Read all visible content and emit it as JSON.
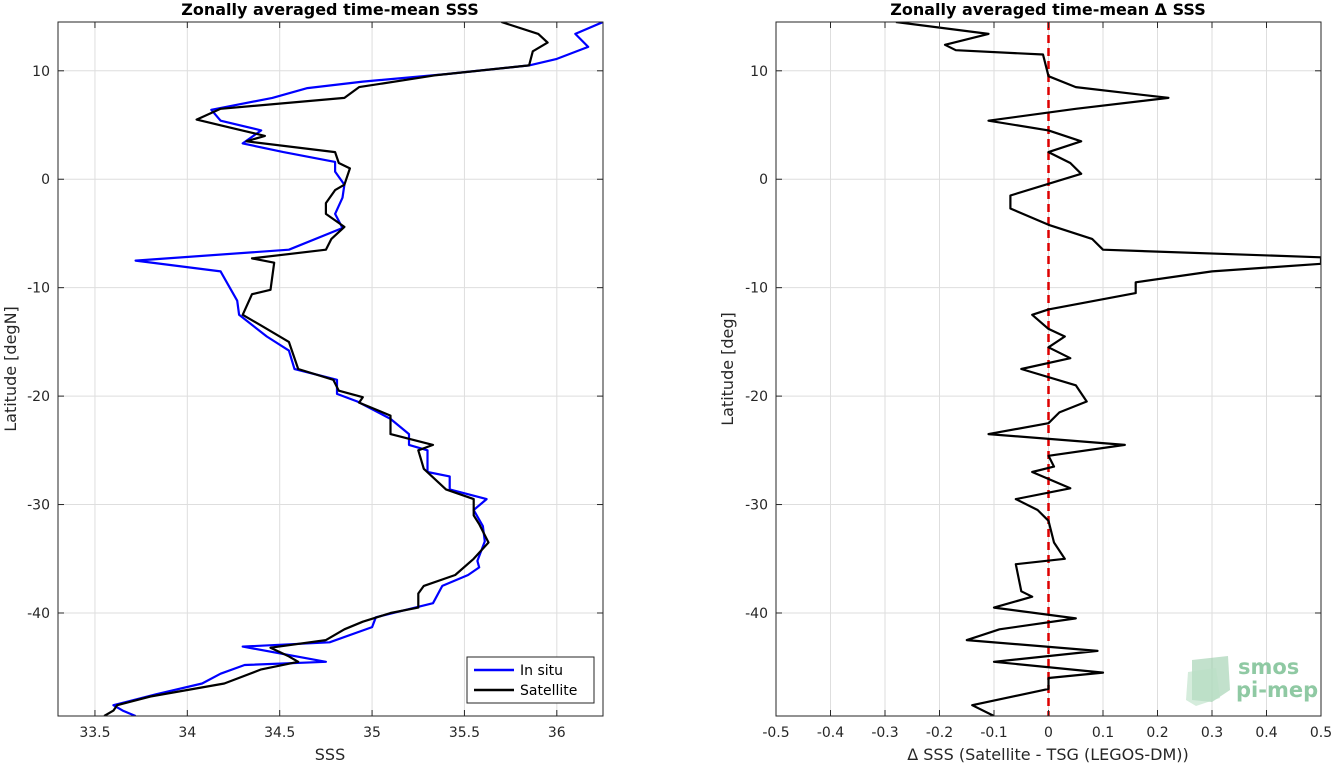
{
  "chart_data": [
    {
      "type": "line",
      "title": "Zonally averaged time-mean SSS",
      "xlabel": "SSS",
      "ylabel": "Latitude [degN]",
      "xlim": [
        33.3,
        36.25
      ],
      "ylim": [
        -49.5,
        14.5
      ],
      "xticks": [
        33.5,
        34,
        34.5,
        35,
        35.5,
        36
      ],
      "xtick_labels": [
        "33.5",
        "34",
        "34.5",
        "35",
        "35.5",
        "36"
      ],
      "yticks": [
        -40,
        -30,
        -20,
        -10,
        0,
        10
      ],
      "ytick_labels": [
        "-40",
        "-30",
        "-20",
        "-10",
        "0",
        "10"
      ],
      "grid": true,
      "legend_position": "bottom-right",
      "colors": {
        "In situ": "#0000ff",
        "Satellite": "#000000"
      },
      "series": [
        {
          "name": "In situ",
          "points": [
            [
              36.25,
              14.5
            ],
            [
              36.1,
              13.4
            ],
            [
              36.17,
              12.2
            ],
            [
              36.0,
              11.1
            ],
            [
              35.85,
              10.5
            ],
            [
              35.4,
              9.7
            ],
            [
              34.95,
              9.0
            ],
            [
              34.65,
              8.4
            ],
            [
              34.46,
              7.5
            ],
            [
              34.13,
              6.4
            ],
            [
              34.18,
              5.4
            ],
            [
              34.4,
              4.5
            ],
            [
              34.3,
              3.3
            ],
            [
              34.52,
              2.5
            ],
            [
              34.8,
              1.6
            ],
            [
              34.8,
              0.7
            ],
            [
              34.85,
              -0.5
            ],
            [
              34.84,
              -1.7
            ],
            [
              34.8,
              -3.2
            ],
            [
              34.84,
              -4.5
            ],
            [
              34.55,
              -6.5
            ],
            [
              33.72,
              -7.5
            ],
            [
              34.18,
              -8.5
            ],
            [
              34.23,
              -10.0
            ],
            [
              34.27,
              -11.2
            ],
            [
              34.28,
              -12.5
            ],
            [
              34.43,
              -14.5
            ],
            [
              34.55,
              -15.8
            ],
            [
              34.58,
              -17.5
            ],
            [
              34.81,
              -18.5
            ],
            [
              34.81,
              -19.8
            ],
            [
              34.92,
              -20.5
            ],
            [
              35.1,
              -22.1
            ],
            [
              35.2,
              -23.5
            ],
            [
              35.2,
              -24.5
            ],
            [
              35.3,
              -25.0
            ],
            [
              35.3,
              -27.0
            ],
            [
              35.42,
              -27.4
            ],
            [
              35.42,
              -28.6
            ],
            [
              35.62,
              -29.5
            ],
            [
              35.55,
              -30.5
            ],
            [
              35.6,
              -32.0
            ],
            [
              35.61,
              -33.4
            ],
            [
              35.57,
              -35.2
            ],
            [
              35.58,
              -35.8
            ],
            [
              35.52,
              -36.5
            ],
            [
              35.38,
              -37.5
            ],
            [
              35.33,
              -39.1
            ],
            [
              35.02,
              -40.4
            ],
            [
              35.0,
              -41.3
            ],
            [
              34.77,
              -42.7
            ],
            [
              34.3,
              -43.1
            ],
            [
              34.75,
              -44.5
            ],
            [
              34.31,
              -44.8
            ],
            [
              34.18,
              -45.6
            ],
            [
              34.08,
              -46.5
            ],
            [
              33.83,
              -47.5
            ],
            [
              33.6,
              -48.5
            ],
            [
              33.65,
              -49.0
            ],
            [
              33.72,
              -49.5
            ]
          ]
        },
        {
          "name": "Satellite",
          "points": [
            [
              35.7,
              14.5
            ],
            [
              35.9,
              13.4
            ],
            [
              35.95,
              12.6
            ],
            [
              35.87,
              11.8
            ],
            [
              35.85,
              10.5
            ],
            [
              35.35,
              9.6
            ],
            [
              34.93,
              8.5
            ],
            [
              34.85,
              7.5
            ],
            [
              34.18,
              6.5
            ],
            [
              34.05,
              5.5
            ],
            [
              34.42,
              4.0
            ],
            [
              34.32,
              3.5
            ],
            [
              34.8,
              2.5
            ],
            [
              34.82,
              1.5
            ],
            [
              34.88,
              1.0
            ],
            [
              34.85,
              -0.5
            ],
            [
              34.8,
              -1.0
            ],
            [
              34.75,
              -2.2
            ],
            [
              34.75,
              -3.2
            ],
            [
              34.85,
              -4.4
            ],
            [
              34.78,
              -5.5
            ],
            [
              34.75,
              -6.5
            ],
            [
              34.35,
              -7.3
            ],
            [
              34.47,
              -7.7
            ],
            [
              34.45,
              -10.2
            ],
            [
              34.35,
              -10.6
            ],
            [
              34.3,
              -12.5
            ],
            [
              34.4,
              -13.5
            ],
            [
              34.55,
              -15.0
            ],
            [
              34.6,
              -17.5
            ],
            [
              34.79,
              -18.5
            ],
            [
              34.82,
              -19.5
            ],
            [
              34.95,
              -20.1
            ],
            [
              34.93,
              -20.6
            ],
            [
              35.1,
              -21.8
            ],
            [
              35.1,
              -23.5
            ],
            [
              35.33,
              -24.5
            ],
            [
              35.25,
              -25.0
            ],
            [
              35.28,
              -26.7
            ],
            [
              35.4,
              -28.6
            ],
            [
              35.55,
              -29.5
            ],
            [
              35.55,
              -31.0
            ],
            [
              35.58,
              -31.8
            ],
            [
              35.63,
              -33.5
            ],
            [
              35.55,
              -35.0
            ],
            [
              35.45,
              -36.5
            ],
            [
              35.28,
              -37.5
            ],
            [
              35.25,
              -38.2
            ],
            [
              35.25,
              -39.5
            ],
            [
              35.1,
              -40.0
            ],
            [
              34.95,
              -40.8
            ],
            [
              34.85,
              -41.5
            ],
            [
              34.75,
              -42.5
            ],
            [
              34.45,
              -43.2
            ],
            [
              34.55,
              -44.0
            ],
            [
              34.6,
              -44.5
            ],
            [
              34.4,
              -45.2
            ],
            [
              34.2,
              -46.5
            ],
            [
              33.8,
              -47.7
            ],
            [
              33.62,
              -48.5
            ],
            [
              33.6,
              -49.0
            ],
            [
              33.55,
              -49.5
            ]
          ]
        }
      ]
    },
    {
      "type": "line",
      "title": "Zonally averaged time-mean Δ SSS",
      "xlabel": "Δ SSS (Satellite - TSG (LEGOS-DM))",
      "ylabel": "Latitude [deg]",
      "xlim": [
        -0.5,
        0.5
      ],
      "ylim": [
        -49.5,
        14.5
      ],
      "xticks": [
        -0.5,
        -0.4,
        -0.3,
        -0.2,
        -0.1,
        0,
        0.1,
        0.2,
        0.3,
        0.4,
        0.5
      ],
      "xtick_labels": [
        "-0.5",
        "-0.4",
        "-0.3",
        "-0.2",
        "-0.1",
        "0",
        "0.1",
        "0.2",
        "0.3",
        "0.4",
        "0.5"
      ],
      "yticks": [
        -40,
        -30,
        -20,
        -10,
        0,
        10
      ],
      "ytick_labels": [
        "-40",
        "-30",
        "-20",
        "-10",
        "0",
        "10"
      ],
      "grid": true,
      "reference_line": {
        "x": 0,
        "color": "#dd0000",
        "style": "dashed"
      },
      "colors": {
        "delta": "#000000"
      },
      "series": [
        {
          "points": [
            [
              -0.28,
              14.5
            ],
            [
              -0.11,
              13.4
            ],
            [
              -0.19,
              12.4
            ],
            [
              -0.17,
              11.9
            ],
            [
              -0.01,
              11.5
            ],
            [
              0.0,
              9.5
            ],
            [
              0.05,
              8.5
            ],
            [
              0.22,
              7.5
            ],
            [
              0.05,
              6.5
            ],
            [
              -0.11,
              5.4
            ],
            [
              0.0,
              4.5
            ],
            [
              0.06,
              3.5
            ],
            [
              0.0,
              2.5
            ],
            [
              0.04,
              1.5
            ],
            [
              0.06,
              0.5
            ],
            [
              -0.07,
              -1.5
            ],
            [
              -0.07,
              -2.7
            ],
            [
              0.0,
              -4.2
            ],
            [
              0.08,
              -5.5
            ],
            [
              0.1,
              -6.5
            ],
            [
              0.5,
              -7.2
            ],
            [
              0.5,
              -7.8
            ],
            [
              0.3,
              -8.5
            ],
            [
              0.16,
              -9.5
            ],
            [
              0.16,
              -10.5
            ],
            [
              0.0,
              -12.0
            ],
            [
              -0.03,
              -12.5
            ],
            [
              0.0,
              -13.8
            ],
            [
              0.03,
              -14.5
            ],
            [
              0.0,
              -15.5
            ],
            [
              0.04,
              -16.5
            ],
            [
              -0.05,
              -17.5
            ],
            [
              0.05,
              -19.0
            ],
            [
              0.07,
              -20.5
            ],
            [
              0.02,
              -21.5
            ],
            [
              0.0,
              -22.5
            ],
            [
              -0.11,
              -23.5
            ],
            [
              0.14,
              -24.5
            ],
            [
              0.0,
              -25.5
            ],
            [
              0.01,
              -26.5
            ],
            [
              -0.03,
              -27.0
            ],
            [
              0.04,
              -28.5
            ],
            [
              -0.06,
              -29.5
            ],
            [
              -0.02,
              -30.5
            ],
            [
              0.0,
              -31.5
            ],
            [
              0.01,
              -33.5
            ],
            [
              0.03,
              -35.0
            ],
            [
              -0.06,
              -35.5
            ],
            [
              -0.05,
              -38.0
            ],
            [
              -0.03,
              -38.5
            ],
            [
              -0.1,
              -39.5
            ],
            [
              0.05,
              -40.5
            ],
            [
              -0.09,
              -41.5
            ],
            [
              -0.15,
              -42.5
            ],
            [
              0.09,
              -43.5
            ],
            [
              -0.1,
              -44.5
            ],
            [
              0.1,
              -45.5
            ],
            [
              0.0,
              -46.0
            ],
            [
              0.0,
              -47.0
            ],
            [
              -0.14,
              -48.5
            ],
            [
              -0.1,
              -49.5
            ]
          ]
        }
      ]
    }
  ],
  "legend": {
    "items": [
      {
        "label": "In situ",
        "color": "#0000ff"
      },
      {
        "label": "Satellite",
        "color": "#000000"
      }
    ]
  },
  "logo": {
    "line1": "smos",
    "line2": "pi-mep",
    "color": "#8fc9a3"
  }
}
